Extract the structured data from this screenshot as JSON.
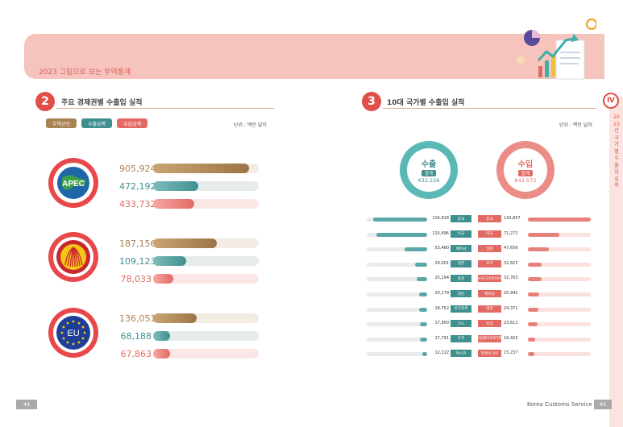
{
  "header": {
    "title": "2023 그림으로 보는 무역통계"
  },
  "left": {
    "section_number": "2",
    "section_title": "주요 경제권별 수출입 실적",
    "legend": {
      "trade": "무역규모",
      "export": "수출금액",
      "import": "수입금액"
    },
    "unit": "단위 : 백만 달러",
    "blocs": [
      {
        "name": "APEC",
        "trade": "905,924",
        "export": "472,192",
        "import": "433,732",
        "trade_ratio": 0.91,
        "export_ratio": 0.43,
        "import_ratio": 0.39
      },
      {
        "name": "ASEAN",
        "trade": "187,156",
        "export": "109,123",
        "import": "78,033",
        "trade_ratio": 0.6,
        "export_ratio": 0.31,
        "import_ratio": 0.19
      },
      {
        "name": "EU",
        "trade": "136,051",
        "export": "68,188",
        "import": "67,863",
        "trade_ratio": 0.41,
        "export_ratio": 0.16,
        "import_ratio": 0.16
      }
    ]
  },
  "right": {
    "section_number": "3",
    "section_title": "10대 국가별 수출입 실적",
    "unit": "단위 : 백만 달러",
    "export_summary": {
      "label": "수출",
      "tag": "합계",
      "total": "632,226"
    },
    "import_summary": {
      "label": "수입",
      "tag": "합계",
      "total": "642,572"
    },
    "rows": [
      {
        "export_value": "124,818",
        "export_country": "중국",
        "import_country": "중국",
        "import_value": "142,857",
        "export_ratio": 0.9,
        "import_ratio": 1.0
      },
      {
        "export_value": "115,696",
        "export_country": "미국",
        "import_country": "미국",
        "import_value": "71,272",
        "export_ratio": 0.84,
        "import_ratio": 0.5
      },
      {
        "export_value": "53,480",
        "export_country": "베트남",
        "import_country": "일본",
        "import_value": "47,656",
        "export_ratio": 0.38,
        "import_ratio": 0.33
      },
      {
        "export_value": "29,001",
        "export_country": "일본",
        "import_country": "호주",
        "import_value": "32,823",
        "export_ratio": 0.2,
        "import_ratio": 0.22
      },
      {
        "export_value": "25,194",
        "export_country": "홍콩",
        "import_country": "사우디아라비아",
        "import_value": "32,763",
        "export_ratio": 0.17,
        "import_ratio": 0.22
      },
      {
        "export_value": "20,179",
        "export_country": "대만",
        "import_country": "베트남",
        "import_value": "25,942",
        "export_ratio": 0.14,
        "import_ratio": 0.18
      },
      {
        "export_value": "18,752",
        "export_country": "싱가포르",
        "import_country": "대만",
        "import_value": "24,371",
        "export_ratio": 0.13,
        "import_ratio": 0.17
      },
      {
        "export_value": "17,950",
        "export_country": "인도",
        "import_country": "독일",
        "import_value": "23,611",
        "export_ratio": 0.12,
        "import_ratio": 0.16
      },
      {
        "export_value": "17,791",
        "export_country": "호주",
        "import_country": "아랍에미리트연합",
        "import_value": "16,423",
        "export_ratio": 0.12,
        "import_ratio": 0.11
      },
      {
        "export_value": "12,222",
        "export_country": "멕시코",
        "import_country": "말레이시아",
        "import_value": "15,237",
        "export_ratio": 0.08,
        "import_ratio": 0.1
      }
    ]
  },
  "side": {
    "chapter": "Ⅳ",
    "label": "2023년 국가별 수출입 실적"
  },
  "footer": {
    "page_left": "44",
    "page_right": "45",
    "org": "Korea Customs Service"
  },
  "colors": {
    "trade": "#a98253",
    "export": "#3f8f8e",
    "import": "#e36a63",
    "accent": "#e04f48"
  }
}
